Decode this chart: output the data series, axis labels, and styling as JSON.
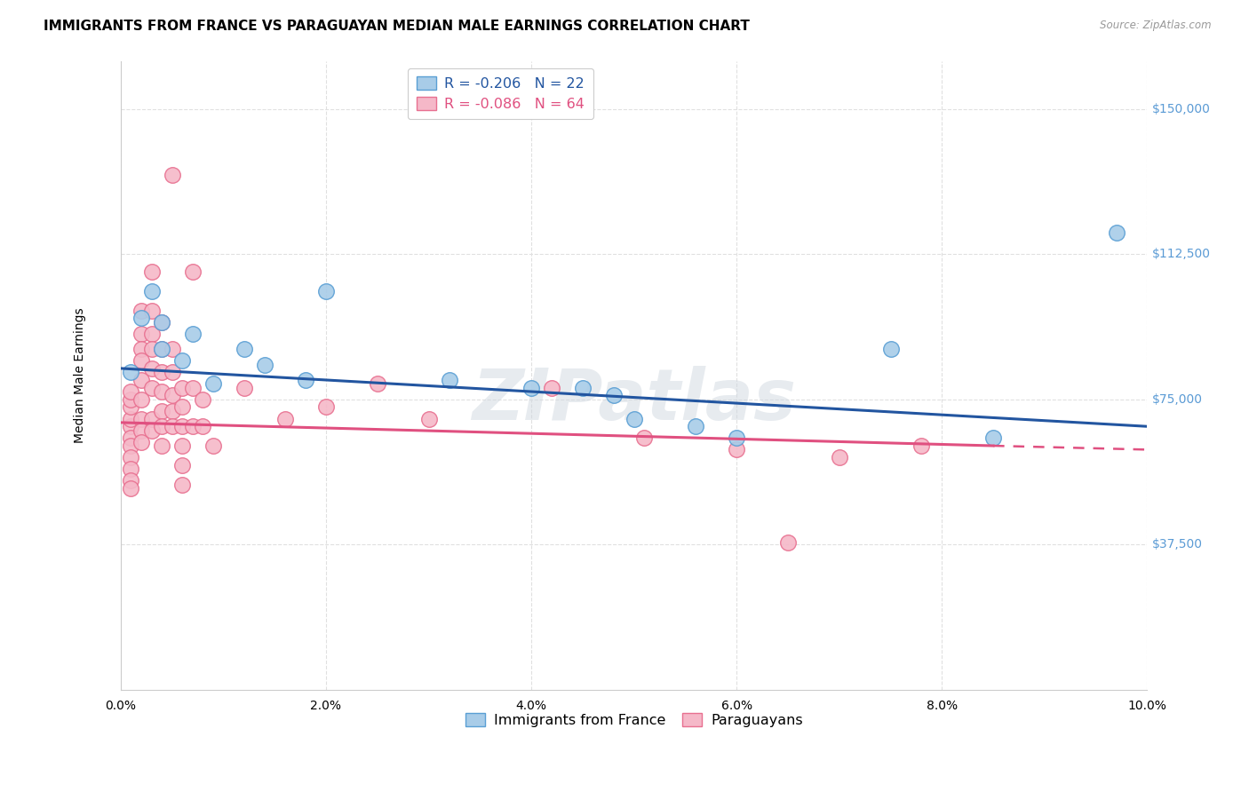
{
  "title": "IMMIGRANTS FROM FRANCE VS PARAGUAYAN MEDIAN MALE EARNINGS CORRELATION CHART",
  "source": "Source: ZipAtlas.com",
  "ylabel": "Median Male Earnings",
  "x_min": 0.0,
  "x_max": 0.1,
  "y_min": 0,
  "y_max": 162500,
  "y_ticks": [
    37500,
    75000,
    112500,
    150000
  ],
  "y_tick_labels": [
    "$37,500",
    "$75,000",
    "$112,500",
    "$150,000"
  ],
  "x_tick_labels": [
    "0.0%",
    "2.0%",
    "4.0%",
    "6.0%",
    "8.0%",
    "10.0%"
  ],
  "x_ticks": [
    0.0,
    0.02,
    0.04,
    0.06,
    0.08,
    0.1
  ],
  "legend_entries": [
    {
      "label": "R = -0.206   N = 22",
      "color": "#aac4e2"
    },
    {
      "label": "R = -0.086   N = 64",
      "color": "#f5b8c8"
    }
  ],
  "legend_bottom": [
    "Immigrants from France",
    "Paraguayans"
  ],
  "blue_scatter": [
    [
      0.001,
      82000
    ],
    [
      0.002,
      96000
    ],
    [
      0.003,
      103000
    ],
    [
      0.004,
      95000
    ],
    [
      0.004,
      88000
    ],
    [
      0.006,
      85000
    ],
    [
      0.007,
      92000
    ],
    [
      0.009,
      79000
    ],
    [
      0.012,
      88000
    ],
    [
      0.014,
      84000
    ],
    [
      0.018,
      80000
    ],
    [
      0.02,
      103000
    ],
    [
      0.032,
      80000
    ],
    [
      0.04,
      78000
    ],
    [
      0.045,
      78000
    ],
    [
      0.048,
      76000
    ],
    [
      0.05,
      70000
    ],
    [
      0.056,
      68000
    ],
    [
      0.06,
      65000
    ],
    [
      0.075,
      88000
    ],
    [
      0.085,
      65000
    ],
    [
      0.097,
      118000
    ]
  ],
  "pink_scatter": [
    [
      0.001,
      68000
    ],
    [
      0.001,
      70000
    ],
    [
      0.001,
      73000
    ],
    [
      0.001,
      75000
    ],
    [
      0.001,
      77000
    ],
    [
      0.001,
      65000
    ],
    [
      0.001,
      63000
    ],
    [
      0.001,
      60000
    ],
    [
      0.001,
      57000
    ],
    [
      0.001,
      54000
    ],
    [
      0.001,
      52000
    ],
    [
      0.002,
      98000
    ],
    [
      0.002,
      92000
    ],
    [
      0.002,
      88000
    ],
    [
      0.002,
      85000
    ],
    [
      0.002,
      80000
    ],
    [
      0.002,
      75000
    ],
    [
      0.002,
      70000
    ],
    [
      0.002,
      67000
    ],
    [
      0.002,
      64000
    ],
    [
      0.003,
      108000
    ],
    [
      0.003,
      98000
    ],
    [
      0.003,
      92000
    ],
    [
      0.003,
      88000
    ],
    [
      0.003,
      83000
    ],
    [
      0.003,
      78000
    ],
    [
      0.003,
      70000
    ],
    [
      0.003,
      67000
    ],
    [
      0.004,
      95000
    ],
    [
      0.004,
      88000
    ],
    [
      0.004,
      82000
    ],
    [
      0.004,
      77000
    ],
    [
      0.004,
      72000
    ],
    [
      0.004,
      68000
    ],
    [
      0.004,
      63000
    ],
    [
      0.005,
      133000
    ],
    [
      0.005,
      88000
    ],
    [
      0.005,
      82000
    ],
    [
      0.005,
      76000
    ],
    [
      0.005,
      72000
    ],
    [
      0.005,
      68000
    ],
    [
      0.006,
      78000
    ],
    [
      0.006,
      73000
    ],
    [
      0.006,
      68000
    ],
    [
      0.006,
      63000
    ],
    [
      0.006,
      58000
    ],
    [
      0.006,
      53000
    ],
    [
      0.007,
      108000
    ],
    [
      0.007,
      78000
    ],
    [
      0.007,
      68000
    ],
    [
      0.008,
      75000
    ],
    [
      0.008,
      68000
    ],
    [
      0.009,
      63000
    ],
    [
      0.012,
      78000
    ],
    [
      0.016,
      70000
    ],
    [
      0.02,
      73000
    ],
    [
      0.025,
      79000
    ],
    [
      0.03,
      70000
    ],
    [
      0.042,
      78000
    ],
    [
      0.051,
      65000
    ],
    [
      0.06,
      62000
    ],
    [
      0.065,
      38000
    ],
    [
      0.07,
      60000
    ],
    [
      0.078,
      63000
    ]
  ],
  "blue_line": {
    "x": [
      0.0,
      0.1
    ],
    "y": [
      83000,
      68000
    ]
  },
  "pink_line": {
    "x": [
      0.0,
      0.085
    ],
    "y": [
      69000,
      63000
    ]
  },
  "pink_dashed": {
    "x": [
      0.085,
      0.1
    ],
    "y": [
      63000,
      62000
    ]
  },
  "background_color": "#ffffff",
  "grid_color": "#e0e0e0",
  "grid_style": "--",
  "blue_color": "#a8cce8",
  "pink_color": "#f5b8c8",
  "blue_edge_color": "#5a9fd4",
  "pink_edge_color": "#e87090",
  "blue_line_color": "#2255a0",
  "pink_line_color": "#e05080",
  "title_fontsize": 11,
  "axis_label_fontsize": 10,
  "tick_fontsize": 10,
  "watermark": "ZIPatlas",
  "right_label_color": "#5b9bd5",
  "scatter_size": 160
}
